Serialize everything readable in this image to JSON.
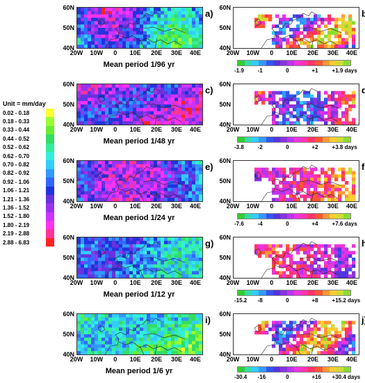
{
  "legend": {
    "unit_label": "Unit = mm/day",
    "items": [
      {
        "range": "0.02  -  0.18",
        "color": "#ffff33"
      },
      {
        "range": "0.18  -  0.33",
        "color": "#99ff33"
      },
      {
        "range": "0.33  -  0.44",
        "color": "#66ee33"
      },
      {
        "range": "0.44  -  0.52",
        "color": "#33dd66"
      },
      {
        "range": "0.52  -  0.62",
        "color": "#33ee99"
      },
      {
        "range": "0.62  -  0.70",
        "color": "#33eedd"
      },
      {
        "range": "0.70  -  0.82",
        "color": "#33ccff"
      },
      {
        "range": "0.82  -  0.92",
        "color": "#3399ff"
      },
      {
        "range": "0.92  -  1.06",
        "color": "#3366ff"
      },
      {
        "range": "1.06  -  1.21",
        "color": "#2233dd"
      },
      {
        "range": "1.21  -  1.36",
        "color": "#6633dd"
      },
      {
        "range": "1.36  -  1.52",
        "color": "#9933ee"
      },
      {
        "range": "1.52  -  1.80",
        "color": "#cc33ff"
      },
      {
        "range": "1.80  -  2.19",
        "color": "#ff33ee"
      },
      {
        "range": "2.19  -  2.88",
        "color": "#ff3399"
      },
      {
        "range": "2.88  -  6.83",
        "color": "#ff2222"
      }
    ]
  },
  "axis": {
    "lat_labels": [
      "60N",
      "50N",
      "40N"
    ],
    "lon_labels": [
      "20W",
      "10W",
      "0",
      "10E",
      "20E",
      "30E",
      "40E"
    ]
  },
  "rows": [
    {
      "left_label": "a)",
      "right_label": "b)",
      "title": "Mean period  1/96 yr",
      "scale": [
        "-1.9",
        "-1",
        "0",
        "+1",
        "+1.9 days"
      ]
    },
    {
      "left_label": "c)",
      "right_label": "d)",
      "title": "Mean period  1/48 yr",
      "scale": [
        "-3.8",
        "-2",
        "0",
        "+2",
        "+3.8 days"
      ]
    },
    {
      "left_label": "e)",
      "right_label": "f)",
      "title": "Mean period  1/24 yr",
      "scale": [
        "-7.6",
        "-4",
        "0",
        "+4",
        "+7.6 days"
      ]
    },
    {
      "left_label": "g)",
      "right_label": "h)",
      "title": "Mean period  1/12 yr",
      "scale": [
        "-15.2",
        "-8",
        "0",
        "+8",
        "+15.2 days"
      ]
    },
    {
      "left_label": "i)",
      "right_label": "j)",
      "title": "Mean period  1/6 yr",
      "scale": [
        "-30.4",
        "-16",
        "0",
        "+16",
        "+30.4 days"
      ]
    }
  ],
  "phase_colors": [
    "#33cc33",
    "#33ddaa",
    "#33ccff",
    "#3399ff",
    "#3355ee",
    "#5533dd",
    "#8833dd",
    "#bb33ee",
    "#ee33dd",
    "#ff33aa",
    "#ff3366",
    "#ff5533",
    "#ff9933",
    "#ffcc33",
    "#ccdd33",
    "#88dd33"
  ],
  "colors": {
    "map_border": "#333333",
    "coast": "#222222"
  }
}
